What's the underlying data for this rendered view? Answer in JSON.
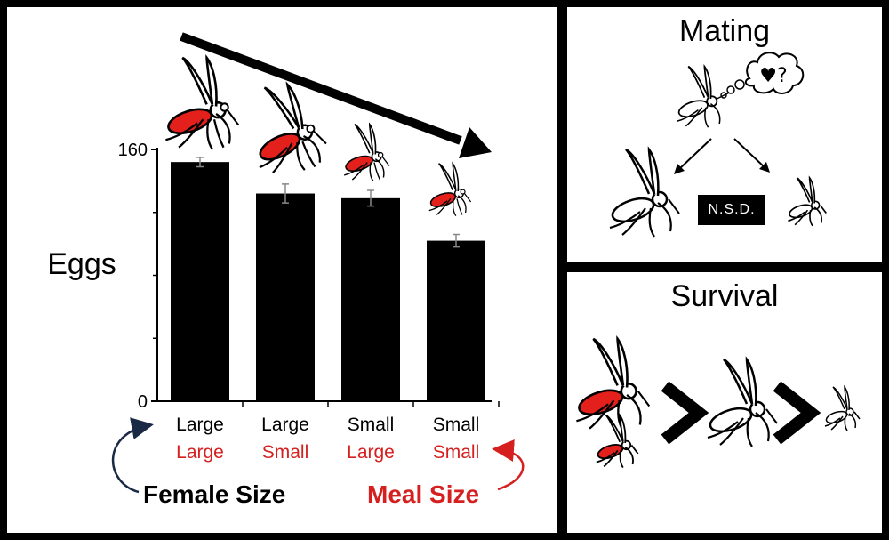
{
  "chart_data": {
    "type": "bar",
    "ylabel": "Eggs",
    "ylim": [
      0,
      160
    ],
    "yticks": [
      0,
      160
    ],
    "categories": [
      {
        "female": "Large",
        "meal": "Large"
      },
      {
        "female": "Large",
        "meal": "Small"
      },
      {
        "female": "Small",
        "meal": "Large"
      },
      {
        "female": "Small",
        "meal": "Small"
      }
    ],
    "values": [
      152,
      132,
      129,
      102
    ],
    "errors": [
      3,
      6,
      5,
      4
    ],
    "bar_color": "#000000",
    "legend": {
      "female_label": "Female Size",
      "meal_label": "Meal Size"
    },
    "colors": {
      "female": "#000000",
      "meal": "#d62020"
    },
    "trend_arrow": "down"
  },
  "mating": {
    "title": "Mating",
    "thought": "♥?",
    "badge": "N.S.D."
  },
  "survival": {
    "title": "Survival"
  },
  "icons": [
    "mosquito-icon",
    "arrow-right-icon",
    "greater-than-icon",
    "thought-bubble-icon"
  ]
}
